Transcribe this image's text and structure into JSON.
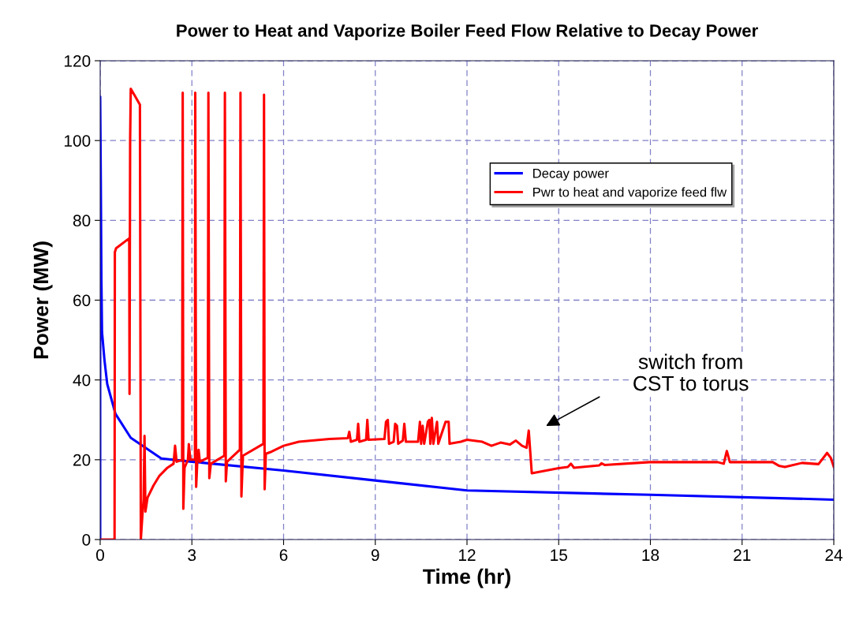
{
  "chart_data": {
    "type": "line",
    "title": "Power to Heat and Vaporize Boiler Feed Flow Relative to Decay Power",
    "xlabel": "Time (hr)",
    "ylabel": "Power (MW)",
    "xlim": [
      0,
      24
    ],
    "xticks": [
      0,
      3,
      6,
      9,
      12,
      15,
      18,
      21,
      24
    ],
    "ylim": [
      0,
      120
    ],
    "yticks": [
      0,
      20,
      40,
      60,
      80,
      100,
      120
    ],
    "grid": true,
    "legend": "top right",
    "marker": "none",
    "line_style": "solid",
    "series": [
      {
        "name": "Decay power",
        "color": "#0000ff",
        "x": [
          0,
          0,
          0.02,
          0.04,
          0.06,
          0.14,
          0.23,
          0.5,
          1.0,
          2.0,
          3.0,
          6.0,
          9.0,
          12.0,
          18.0,
          24.0
        ],
        "values": [
          0,
          111,
          90,
          65,
          52,
          45,
          39,
          31.5,
          25.5,
          20.3,
          19.5,
          17.3,
          14.8,
          12.3,
          11.2,
          10.0
        ]
      },
      {
        "name": "Pwr to heat and vaporize feed flw",
        "color": "#ff0000",
        "x": [
          0,
          0.47,
          0.48,
          0.52,
          0.95,
          0.96,
          0.98,
          1.0,
          1.15,
          1.3,
          1.33,
          1.38,
          1.42,
          1.45,
          1.48,
          1.55,
          1.74,
          1.94,
          2.2,
          2.4,
          2.45,
          2.5,
          2.68,
          2.7,
          2.72,
          2.76,
          2.87,
          2.9,
          2.95,
          3.1,
          3.11,
          3.14,
          3.18,
          3.22,
          3.26,
          3.52,
          3.54,
          3.57,
          3.62,
          4.06,
          4.08,
          4.11,
          4.15,
          4.57,
          4.59,
          4.62,
          4.67,
          5.34,
          5.36,
          5.38,
          5.42,
          5.6,
          6.0,
          6.5,
          7.5,
          8.1,
          8.15,
          8.2,
          8.4,
          8.44,
          8.48,
          8.7,
          8.74,
          8.78,
          9.3,
          9.35,
          9.41,
          9.45,
          9.6,
          9.65,
          9.71,
          9.75,
          9.9,
          9.95,
          10.0,
          10.4,
          10.46,
          10.5,
          10.55,
          10.6,
          10.72,
          10.77,
          10.8,
          10.85,
          10.9,
          11.02,
          11.06,
          11.3,
          11.4,
          11.43,
          11.8,
          12.0,
          12.5,
          12.8,
          13.1,
          13.4,
          13.6,
          13.8,
          13.95,
          14.02,
          14.12,
          15.0,
          15.3,
          15.4,
          15.5,
          16.33,
          16.4,
          16.5,
          17.97,
          20.2,
          20.4,
          20.5,
          20.6,
          22.0,
          22.2,
          22.4,
          22.96,
          23.5,
          23.78,
          23.9,
          24
        ],
        "values": [
          0,
          0,
          72,
          73,
          75.5,
          36.5,
          100,
          113,
          111,
          109,
          0,
          6,
          10,
          26,
          7,
          10.5,
          13.5,
          16,
          18,
          19,
          23.5,
          19.5,
          20,
          112,
          7.7,
          18,
          20,
          23.9,
          20,
          20,
          112,
          13.2,
          20,
          22.5,
          19.5,
          20.5,
          112,
          15.4,
          19,
          21,
          112,
          14.6,
          19.5,
          22.5,
          112,
          10.8,
          21,
          24,
          111.5,
          12.6,
          21.5,
          22,
          23.5,
          24.5,
          25.2,
          25.4,
          27,
          24.5,
          25,
          29,
          24.5,
          25,
          30,
          25,
          25.2,
          29.5,
          30,
          24,
          24.5,
          29,
          28.5,
          24,
          24.8,
          29,
          24.5,
          24.5,
          29.5,
          24,
          28.5,
          24,
          29.5,
          30,
          24,
          30.5,
          24,
          29.5,
          24,
          29.5,
          29.5,
          24,
          24.5,
          25,
          24.5,
          23.5,
          24.3,
          23.8,
          24.8,
          23.5,
          23,
          27.3,
          16.6,
          17.9,
          18.2,
          19,
          18,
          18.6,
          19.1,
          18.7,
          19.4,
          19.4,
          19,
          22.2,
          19.4,
          19.4,
          18.5,
          18.2,
          19.2,
          18.9,
          21.7,
          20.5,
          18.2
        ]
      }
    ],
    "annotations": [
      "switch from\nCST to torus"
    ]
  }
}
